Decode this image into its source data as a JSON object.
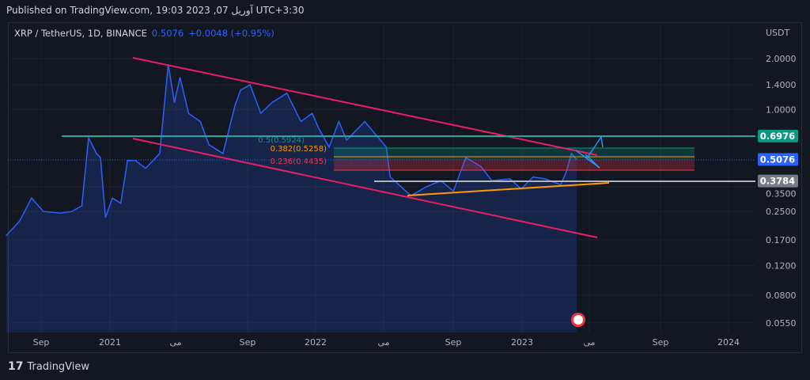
{
  "header": {
    "published": "Published on TradingView.com, 19:03 2023 ,07 آوریل UTC+3:30"
  },
  "legend": {
    "symbol": "XRP / TetherUS, 1D, BINANCE",
    "price": "0.5076",
    "change": "+0.0048 (+0.95%)"
  },
  "footer": {
    "brand": "TradingView"
  },
  "chart_data": {
    "type": "area",
    "yscale": "log",
    "ylabel": "USDT",
    "y_ticks": [
      "2.0000",
      "1.4000",
      "1.0000",
      "0.3500",
      "0.2500",
      "0.1700",
      "0.1200",
      "0.0800",
      "0.0550"
    ],
    "x_ticks": [
      "Sep",
      "2021",
      "می",
      "Sep",
      "2022",
      "می",
      "Sep",
      "2023",
      "می",
      "Sep",
      "2024"
    ],
    "grid": true,
    "line_color": "#2962ff",
    "series": [
      [
        "2020-07-01",
        0.18
      ],
      [
        "2020-07-25",
        0.22
      ],
      [
        "2020-08-15",
        0.3
      ],
      [
        "2020-09-05",
        0.25
      ],
      [
        "2020-10-05",
        0.245
      ],
      [
        "2020-10-25",
        0.25
      ],
      [
        "2020-11-12",
        0.27
      ],
      [
        "2020-11-24",
        0.68
      ],
      [
        "2020-12-08",
        0.55
      ],
      [
        "2020-12-15",
        0.52
      ],
      [
        "2020-12-24",
        0.23
      ],
      [
        "2021-01-05",
        0.3
      ],
      [
        "2021-01-20",
        0.28
      ],
      [
        "2021-02-01",
        0.5
      ],
      [
        "2021-02-15",
        0.5
      ],
      [
        "2021-03-05",
        0.45
      ],
      [
        "2021-03-30",
        0.55
      ],
      [
        "2021-04-14",
        1.85
      ],
      [
        "2021-04-25",
        1.1
      ],
      [
        "2021-05-05",
        1.55
      ],
      [
        "2021-05-20",
        0.95
      ],
      [
        "2021-06-10",
        0.85
      ],
      [
        "2021-06-25",
        0.62
      ],
      [
        "2021-07-20",
        0.55
      ],
      [
        "2021-08-10",
        1.05
      ],
      [
        "2021-08-20",
        1.3
      ],
      [
        "2021-09-06",
        1.4
      ],
      [
        "2021-09-25",
        0.95
      ],
      [
        "2021-10-15",
        1.1
      ],
      [
        "2021-11-10",
        1.25
      ],
      [
        "2021-12-05",
        0.85
      ],
      [
        "2021-12-25",
        0.95
      ],
      [
        "2022-01-05",
        0.78
      ],
      [
        "2022-01-24",
        0.6
      ],
      [
        "2022-02-10",
        0.85
      ],
      [
        "2022-02-24",
        0.66
      ],
      [
        "2022-03-28",
        0.85
      ],
      [
        "2022-04-15",
        0.72
      ],
      [
        "2022-05-05",
        0.6
      ],
      [
        "2022-05-12",
        0.4
      ],
      [
        "2022-06-18",
        0.31
      ],
      [
        "2022-07-15",
        0.35
      ],
      [
        "2022-08-10",
        0.38
      ],
      [
        "2022-09-01",
        0.33
      ],
      [
        "2022-09-23",
        0.52
      ],
      [
        "2022-10-20",
        0.46
      ],
      [
        "2022-11-08",
        0.38
      ],
      [
        "2022-12-10",
        0.39
      ],
      [
        "2022-12-30",
        0.34
      ],
      [
        "2023-01-20",
        0.4
      ],
      [
        "2023-02-10",
        0.39
      ],
      [
        "2023-03-10",
        0.36
      ],
      [
        "2023-03-20",
        0.43
      ],
      [
        "2023-03-29",
        0.55
      ],
      [
        "2023-04-07",
        0.5076
      ]
    ],
    "levels": {
      "resistance": "0.6976",
      "last": "0.5076",
      "support": "0.3784"
    },
    "level_colors": {
      "resistance": "#089981",
      "last": "#2962ff",
      "support": "#787b86"
    },
    "fib_labels": [
      "0.5(0.5924)",
      "0.382(0.5258)",
      "0.236(0.4435)"
    ]
  }
}
